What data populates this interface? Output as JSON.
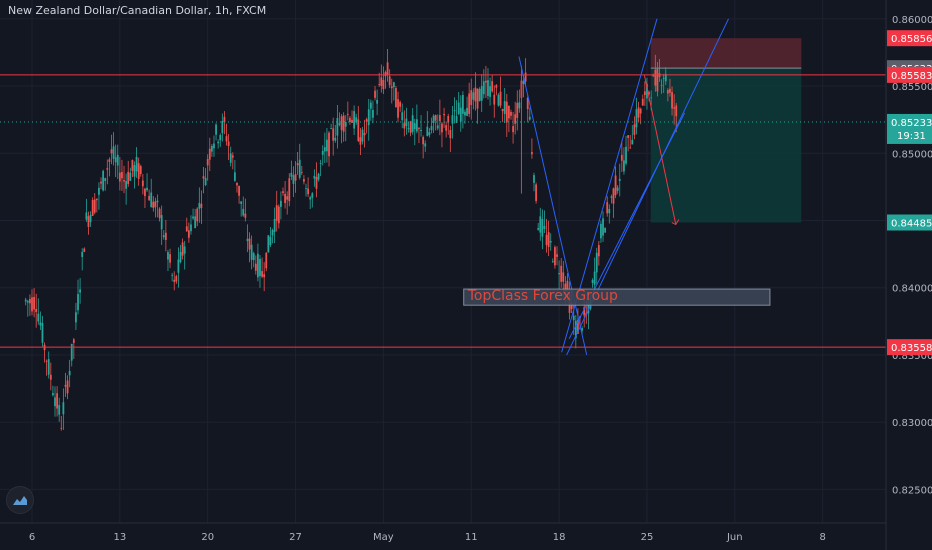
{
  "title": "New Zealand Dollar/Canadian Dollar, 1h, FXCM",
  "colors": {
    "background": "#131722",
    "grid": "#1e2230",
    "up": "#26a69a",
    "down": "#ef5350",
    "resistance": "#f23645",
    "trendline": "#2962ff",
    "stop_zone": "#5b2630",
    "target_zone": "#0d3b3a",
    "current_price": "#26a69a"
  },
  "watermark": "TopClass Forex Group",
  "chart_data": {
    "type": "candlestick",
    "title": "New Zealand Dollar/Canadian Dollar, 1h, FXCM",
    "y_ticks": [
      0.825,
      0.83,
      0.835,
      0.84,
      0.845,
      0.85,
      0.855,
      0.86
    ],
    "y_tick_labels": [
      "0.82500",
      "0.83000",
      "0.83500",
      "0.84000",
      "0.84500",
      "0.85000",
      "0.85500",
      "0.86000"
    ],
    "ylim": [
      0.8225,
      0.8614
    ],
    "x_labels": [
      "6",
      "13",
      "20",
      "27",
      "May",
      "11",
      "18",
      "25",
      "Jun",
      "8"
    ],
    "x_label_index": [
      0,
      7,
      14,
      21,
      28,
      35,
      42,
      49,
      56,
      63
    ],
    "grid": true,
    "daily_close": [
      0.839,
      0.834,
      0.83,
      0.836,
      0.845,
      0.847,
      0.85,
      0.848,
      0.849,
      0.847,
      0.845,
      0.84,
      0.844,
      0.846,
      0.851,
      0.852,
      0.848,
      0.843,
      0.841,
      0.845,
      0.847,
      0.849,
      0.847,
      0.85,
      0.852,
      0.853,
      0.851,
      0.854,
      0.856,
      0.853,
      0.852,
      0.851,
      0.8525,
      0.852,
      0.8535,
      0.854,
      0.855,
      0.854,
      0.852,
      0.856,
      0.845,
      0.843,
      0.841,
      0.837,
      0.838,
      0.844,
      0.847,
      0.85,
      0.853,
      0.855,
      0.856,
      0.853
    ],
    "horizontal_levels": [
      {
        "value": 0.85583,
        "label": "0.85583"
      },
      {
        "value": 0.83558,
        "label": "0.83558"
      }
    ],
    "position": {
      "entry": 0.85633,
      "stop": 0.85856,
      "target": 0.84485,
      "entry_label": "0.85633",
      "stop_label": "0.85856",
      "target_label": "0.84485"
    },
    "current_price": {
      "value": 0.85233,
      "label": "0.85233",
      "countdown": "19:31"
    },
    "annotations": [
      "TopClass Forex Group"
    ]
  }
}
